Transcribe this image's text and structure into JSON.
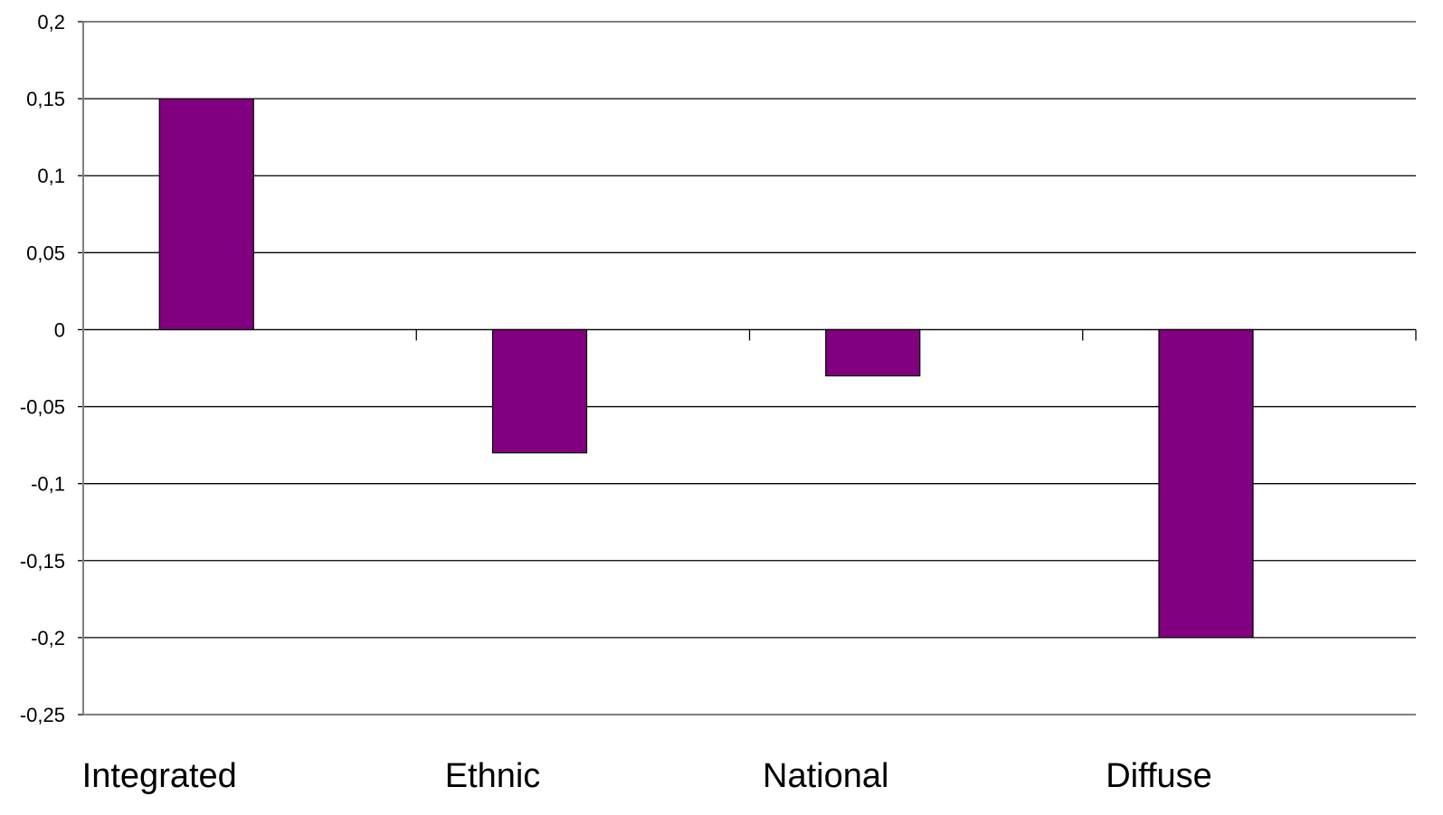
{
  "chart_data": {
    "type": "bar",
    "categories": [
      "Integrated",
      "Ethnic",
      "National",
      "Diffuse"
    ],
    "values": [
      0.15,
      -0.08,
      -0.03,
      -0.2
    ],
    "ylim": [
      -0.25,
      0.2
    ],
    "yticks": [
      0.2,
      0.15,
      0.1,
      0.05,
      0,
      -0.05,
      -0.1,
      -0.15,
      -0.2,
      -0.25
    ],
    "ytick_labels": [
      "0,2",
      "0,15",
      "0,1",
      "0,05",
      "0",
      "-0,05",
      "-0,1",
      "-0,15",
      "-0,2",
      "-0,25"
    ],
    "grid": true,
    "legend": "none",
    "title": "",
    "xlabel": "",
    "ylabel": "",
    "bar_color": "#800080",
    "grid_color": "#000000",
    "axis_color": "#808080"
  }
}
